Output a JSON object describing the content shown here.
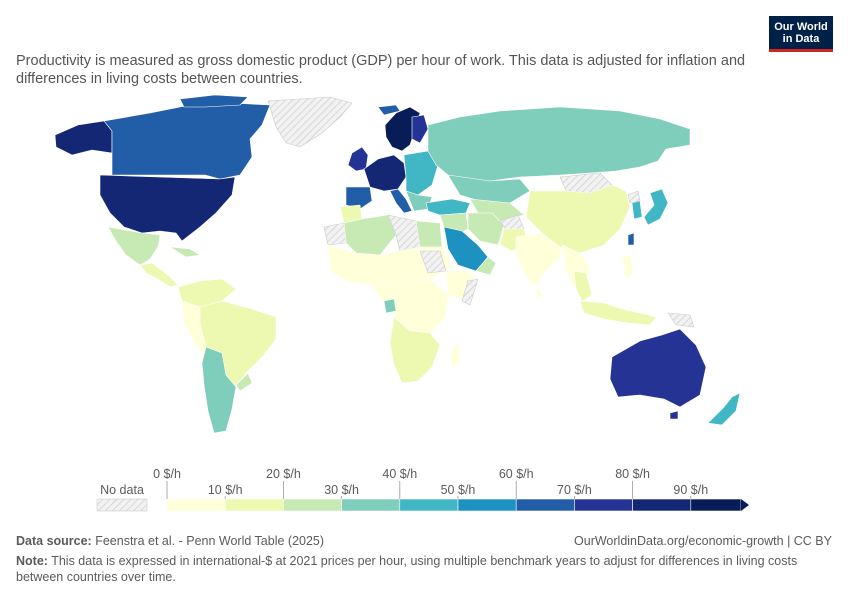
{
  "logo": {
    "line1": "Our World",
    "line2": "in Data"
  },
  "subtitle": "Productivity is measured as gross domestic product (GDP) per hour of work. This data is adjusted for inflation and differences in living costs between countries.",
  "legend": {
    "no_data": "No data",
    "top_labels": [
      "0 $/h",
      "20 $/h",
      "40 $/h",
      "60 $/h",
      "80 $/h"
    ],
    "bottom_labels": [
      "10 $/h",
      "30 $/h",
      "50 $/h",
      "70 $/h",
      "90 $/h"
    ],
    "colors": [
      "#ffffd9",
      "#edf8b1",
      "#c7e9b4",
      "#7fcdbb",
      "#41b6c4",
      "#1d91c0",
      "#225ea8",
      "#253494",
      "#142774",
      "#081d58"
    ],
    "no_data_color": "#e0e0e0"
  },
  "source": {
    "label": "Data source:",
    "text": "Feenstra et al. - Penn World Table (2025)"
  },
  "credit": "OurWorldinData.org/economic-growth | CC BY",
  "note": {
    "label": "Note:",
    "text": "This data is expressed in international-$ at 2021 prices per hour, using multiple benchmark years to adjust for differences in living costs between countries over time."
  }
}
